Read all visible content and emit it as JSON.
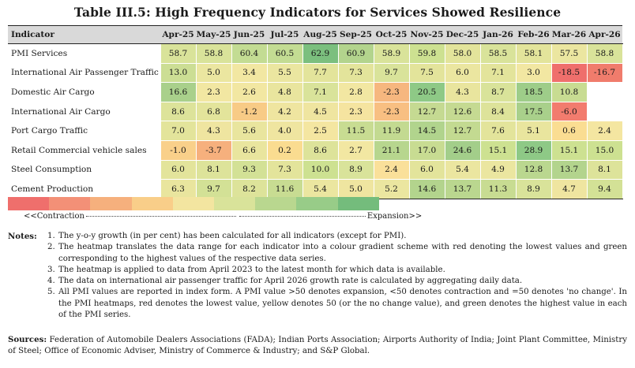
{
  "title": "Table III.5: High Frequency Indicators for Services Showed Resilience",
  "table": {
    "indicator_header": "Indicator",
    "months": [
      "Apr-25",
      "May-25",
      "Jun-25",
      "Jul-25",
      "Aug-25",
      "Sep-25",
      "Oct-25",
      "Nov-25",
      "Dec-25",
      "Jan-26",
      "Feb-26",
      "Mar-26",
      "Apr-26"
    ],
    "rows": [
      {
        "label": "PMI Services",
        "values": [
          "58.7",
          "58.8",
          "60.4",
          "60.5",
          "62.9",
          "60.9",
          "58.9",
          "59.8",
          "58.0",
          "58.5",
          "58.1",
          "57.5",
          "58.8"
        ],
        "colors": [
          "#d9e39a",
          "#d9e39a",
          "#c3dc93",
          "#c3dc93",
          "#7bbf7e",
          "#b3d48d",
          "#d9e39a",
          "#cde191",
          "#e3e49b",
          "#d9e39a",
          "#e3e49b",
          "#ebe6a0",
          "#d9e39a"
        ]
      },
      {
        "label": "International Air Passenger Traffic",
        "values": [
          "13.0",
          "5.0",
          "3.4",
          "5.5",
          "7.7",
          "7.3",
          "9.7",
          "7.5",
          "6.0",
          "7.1",
          "3.0",
          "-18.5",
          "-16.7"
        ],
        "colors": [
          "#ccde94",
          "#ebe6a0",
          "#f2e7a2",
          "#ebe6a0",
          "#e3e49b",
          "#e3e49b",
          "#d9e39a",
          "#e3e49b",
          "#ebe6a0",
          "#e3e49b",
          "#f2e7a2",
          "#ef6f6c",
          "#f07c6c"
        ]
      },
      {
        "label": "Domestic Air Cargo",
        "values": [
          "16.6",
          "2.3",
          "2.6",
          "4.8",
          "7.1",
          "2.8",
          "-2.3",
          "20.5",
          "4.3",
          "8.7",
          "18.5",
          "10.8",
          ""
        ],
        "colors": [
          "#a9d08b",
          "#f2e7a2",
          "#f2e7a2",
          "#e9e59e",
          "#d9e39a",
          "#f2e7a2",
          "#f6b77f",
          "#8ec986",
          "#e9e59e",
          "#d9e39a",
          "#9ecd89",
          "#c8dc92",
          "#ffffff"
        ]
      },
      {
        "label": "International Air Cargo",
        "values": [
          "8.6",
          "6.8",
          "-1.2",
          "4.2",
          "4.5",
          "2.3",
          "-2.3",
          "12.7",
          "12.6",
          "8.4",
          "17.5",
          "-6.0",
          ""
        ],
        "colors": [
          "#dde39a",
          "#e3e49b",
          "#f8cb86",
          "#efe5a0",
          "#efe5a0",
          "#f5e4a0",
          "#f8bf82",
          "#c5da92",
          "#c5da92",
          "#dde39a",
          "#a9d08b",
          "#f27c6e",
          "#ffffff"
        ]
      },
      {
        "label": "Port Cargo Traffic",
        "values": [
          "7.0",
          "4.3",
          "5.6",
          "4.0",
          "2.5",
          "11.5",
          "11.9",
          "14.5",
          "12.7",
          "7.6",
          "5.1",
          "0.6",
          "2.4"
        ],
        "colors": [
          "#e3e49b",
          "#efe5a0",
          "#e9e59e",
          "#efe5a0",
          "#f4e6a1",
          "#c8dc92",
          "#c3da91",
          "#b1d48d",
          "#c3da91",
          "#e3e49b",
          "#e9e59e",
          "#fadd92",
          "#f4e6a1"
        ]
      },
      {
        "label": "Retail Commercial vehicle sales",
        "values": [
          "-1.0",
          "-3.7",
          "6.6",
          "0.2",
          "8.6",
          "2.7",
          "21.1",
          "17.0",
          "24.6",
          "15.1",
          "28.9",
          "15.1",
          "15.0"
        ],
        "colors": [
          "#f9d08a",
          "#f6b07d",
          "#e9e59e",
          "#fadc90",
          "#dde39a",
          "#f2e7a2",
          "#b7d68e",
          "#c8dc92",
          "#a3ce8a",
          "#cde191",
          "#8ec986",
          "#cde191",
          "#cde191"
        ]
      },
      {
        "label": "Steel Consumption",
        "values": [
          "6.0",
          "8.1",
          "9.3",
          "7.3",
          "10.0",
          "8.9",
          "2.4",
          "6.0",
          "5.4",
          "4.9",
          "12.8",
          "13.7",
          "8.1"
        ],
        "colors": [
          "#e3e49b",
          "#dde39a",
          "#d3e196",
          "#e3e49b",
          "#cde191",
          "#d9e39a",
          "#fae09a",
          "#e3e49b",
          "#ebe6a0",
          "#ebe6a0",
          "#bad78f",
          "#b3d48d",
          "#dde39a"
        ]
      },
      {
        "label": "Cement Production",
        "values": [
          "6.3",
          "9.7",
          "8.2",
          "11.6",
          "5.4",
          "5.0",
          "5.2",
          "14.6",
          "13.7",
          "11.3",
          "8.9",
          "4.7",
          "9.4"
        ],
        "colors": [
          "#e9e59e",
          "#d3e196",
          "#dde39a",
          "#c8dc92",
          "#ebe6a0",
          "#efe5a0",
          "#ebe6a0",
          "#b3d48d",
          "#bad78f",
          "#c8dc92",
          "#d9e39a",
          "#efe5a0",
          "#d3e196"
        ]
      }
    ]
  },
  "legend": {
    "colors": [
      "#ef6f6c",
      "#f39077",
      "#f6b07d",
      "#f9ce89",
      "#f3e5a0",
      "#d9e39a",
      "#b9d78f",
      "#98cc88",
      "#74bc7c"
    ],
    "contraction_label": "<<Contraction",
    "expansion_label": "Expansion>>"
  },
  "notes": {
    "label": "Notes:",
    "items": [
      {
        "num": "1.",
        "text": "The y-o-y growth (in per cent) has been calculated for all indicators (except for PMI)."
      },
      {
        "num": "2.",
        "text": "The heatmap translates the data range for each indicator into a colour gradient scheme with red denoting the lowest values and green corresponding to the highest values of the respective data series."
      },
      {
        "num": "3.",
        "text": "The heatmap is applied to data from April 2023 to the latest month for which data is available."
      },
      {
        "num": "4.",
        "text": "The data on international air passenger traffic for April 2026 growth rate is calculated by aggregating daily data."
      },
      {
        "num": "5.",
        "text": "All PMI values are reported in index form. A PMI value >50 denotes expansion, <50 denotes contraction and =50 denotes 'no change'. In the PMI heatmaps, red denotes the lowest value, yellow denotes 50 (or the no change value), and green denotes the highest value in each of the PMI series."
      }
    ]
  },
  "sources": {
    "label": "Sources:",
    "text": "Federation of Automobile Dealers Associations (FADA); Indian Ports Association; Airports Authority of India; Joint Plant Committee, Ministry of Steel; Office of Economic Adviser, Ministry of Commerce & Industry; and S&P Global."
  }
}
